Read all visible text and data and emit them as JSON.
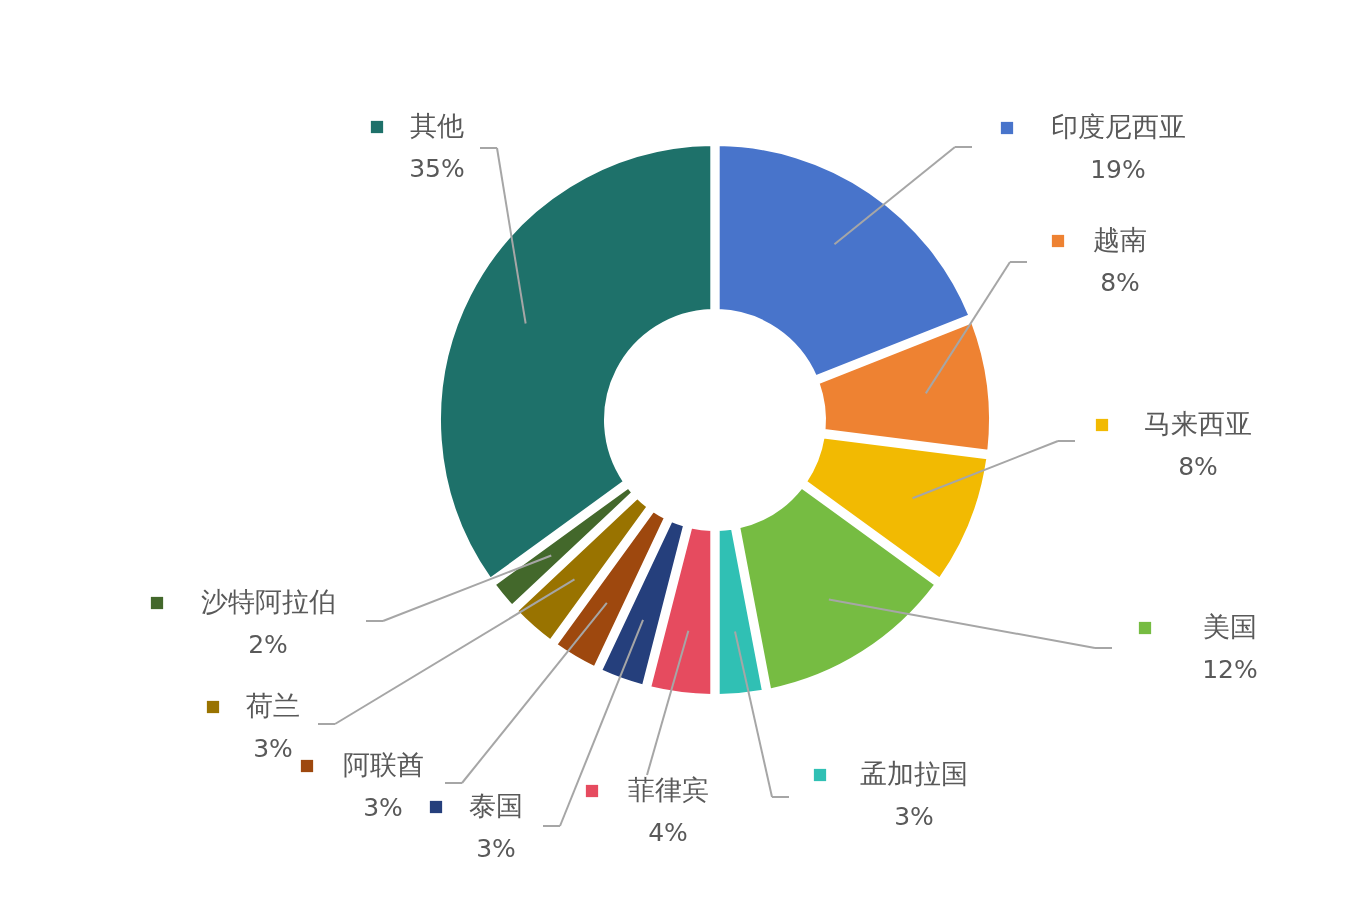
{
  "chart_data": {
    "type": "donut",
    "categories": [
      "印度尼西亚",
      "越南",
      "马来西亚",
      "美国",
      "孟加拉国",
      "菲律宾",
      "泰国",
      "阿联酋",
      "荷兰",
      "沙特阿拉伯",
      "其他"
    ],
    "values": [
      19,
      8,
      8,
      12,
      3,
      4,
      3,
      3,
      3,
      2,
      35
    ],
    "value_labels": [
      "19%",
      "8%",
      "8%",
      "12%",
      "3%",
      "4%",
      "3%",
      "3%",
      "3%",
      "2%",
      "35%"
    ],
    "legend": "right",
    "colors": [
      "#4874cb",
      "#ee8232",
      "#f2ba02",
      "#76bc42",
      "#30c0b4",
      "#e64b5f",
      "#253f7c",
      "#9e480e",
      "#997300",
      "#43682b",
      "#1e716a"
    ]
  }
}
